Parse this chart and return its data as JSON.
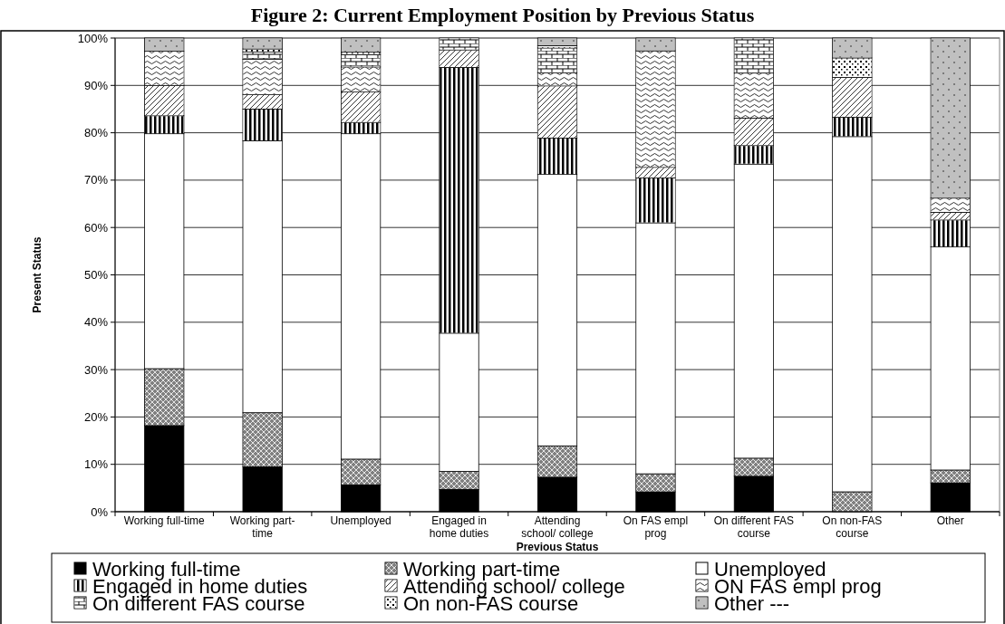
{
  "chart_data": {
    "type": "bar",
    "stacked": true,
    "title": "Figure 2:  Current Employment Position by Previous Status",
    "xlabel": "Previous Status",
    "ylabel": "Present Status",
    "categories": [
      "Working full-time",
      "Working part-time",
      "Unemployed",
      "Engaged in home duties",
      "Attending school/ college",
      "On FAS empl prog",
      "On different FAS course",
      "On non-FAS course",
      "Other"
    ],
    "ylim": [
      0,
      100
    ],
    "yticks": [
      {
        "value": 0,
        "label": "0%"
      },
      {
        "value": 10,
        "label": "10%"
      },
      {
        "value": 20,
        "label": "20%"
      },
      {
        "value": 30,
        "label": "30%"
      },
      {
        "value": 40,
        "label": "40%"
      },
      {
        "value": 50,
        "label": "50%"
      },
      {
        "value": 60,
        "label": "60%"
      },
      {
        "value": 70,
        "label": "70%"
      },
      {
        "value": 80,
        "label": "80%"
      },
      {
        "value": 90,
        "label": "90%"
      },
      {
        "value": 100,
        "label": "100%"
      }
    ],
    "grid": "y",
    "legend": "bottom",
    "series": [
      {
        "name": "Working full-time",
        "color": "#000000",
        "values": [
          18.2,
          9.5,
          5.7,
          4.7,
          7.3,
          4.2,
          7.5,
          0,
          6.1
        ]
      },
      {
        "name": "Working part-time",
        "color": "#808080",
        "values": [
          12.0,
          11.4,
          5.4,
          3.8,
          6.6,
          3.8,
          3.8,
          4.2,
          2.7
        ]
      },
      {
        "name": "Unemployed",
        "color": "#ffffff",
        "values": [
          49.6,
          57.4,
          68.7,
          29.2,
          57.3,
          53.0,
          62.1,
          75.0,
          47.1
        ]
      },
      {
        "name": "Engaged in home duties",
        "color": "#ffffff",
        "values": [
          3.8,
          6.7,
          2.4,
          56.1,
          7.7,
          9.5,
          3.9,
          4.1,
          5.7
        ]
      },
      {
        "name": "Attending school/ college",
        "color": "#ffffff",
        "values": [
          6.4,
          3.1,
          6.4,
          3.7,
          11.0,
          2.2,
          5.8,
          8.4,
          1.6
        ]
      },
      {
        "name": "ON FAS empl prog",
        "color": "#ffffff",
        "values": [
          7.2,
          7.4,
          5.3,
          0,
          2.8,
          24.6,
          9.5,
          0,
          3.0
        ]
      },
      {
        "name": "On different FAS course",
        "color": "#ffffff",
        "values": [
          0,
          1.6,
          2.6,
          2.5,
          5.2,
          0,
          7.4,
          0,
          0
        ]
      },
      {
        "name": "On non-FAS course",
        "color": "#ffffff",
        "values": [
          0,
          0.6,
          0.5,
          0,
          0.5,
          0,
          0,
          4.1,
          0
        ]
      },
      {
        "name": "Other ---",
        "color": "#c0c0c0",
        "values": [
          2.8,
          2.3,
          3.0,
          0,
          1.6,
          2.7,
          0,
          4.2,
          33.8
        ]
      }
    ]
  }
}
